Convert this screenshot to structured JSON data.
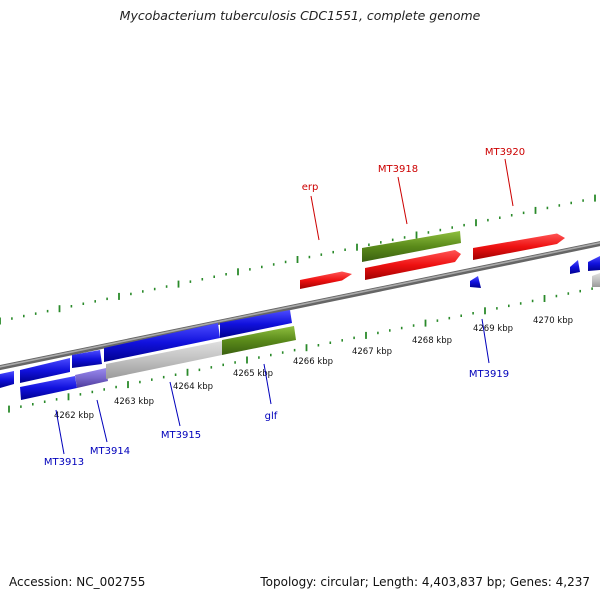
{
  "title": "Mycobacterium tuberculosis CDC1551, complete genome",
  "footer": {
    "accession": "Accession: NC_002755",
    "stats": "Topology: circular; Length: 4,403,837 bp; Genes: 4,237"
  },
  "scale_labels": [
    "4262 kbp",
    "4263 kbp",
    "4264 kbp",
    "4265 kbp",
    "4266 kbp",
    "4267 kbp",
    "4268 kbp",
    "4269 kbp",
    "4270 kbp"
  ],
  "gene_labels": {
    "forward": [
      "erp",
      "MT3918",
      "MT3920"
    ],
    "reverse": [
      "MT3913",
      "MT3914",
      "MT3915",
      "glf",
      "MT3919"
    ]
  },
  "colors": {
    "forward_gene": "#ee1111",
    "reverse_gene": "#1111dd",
    "highlight_gene": "#5a8a1a",
    "pseudo_gene": "#bbbbbb",
    "backbone": "#888888",
    "tick": "#2a8a2a",
    "forward_label": "#cc0000",
    "reverse_label": "#0000bb"
  }
}
